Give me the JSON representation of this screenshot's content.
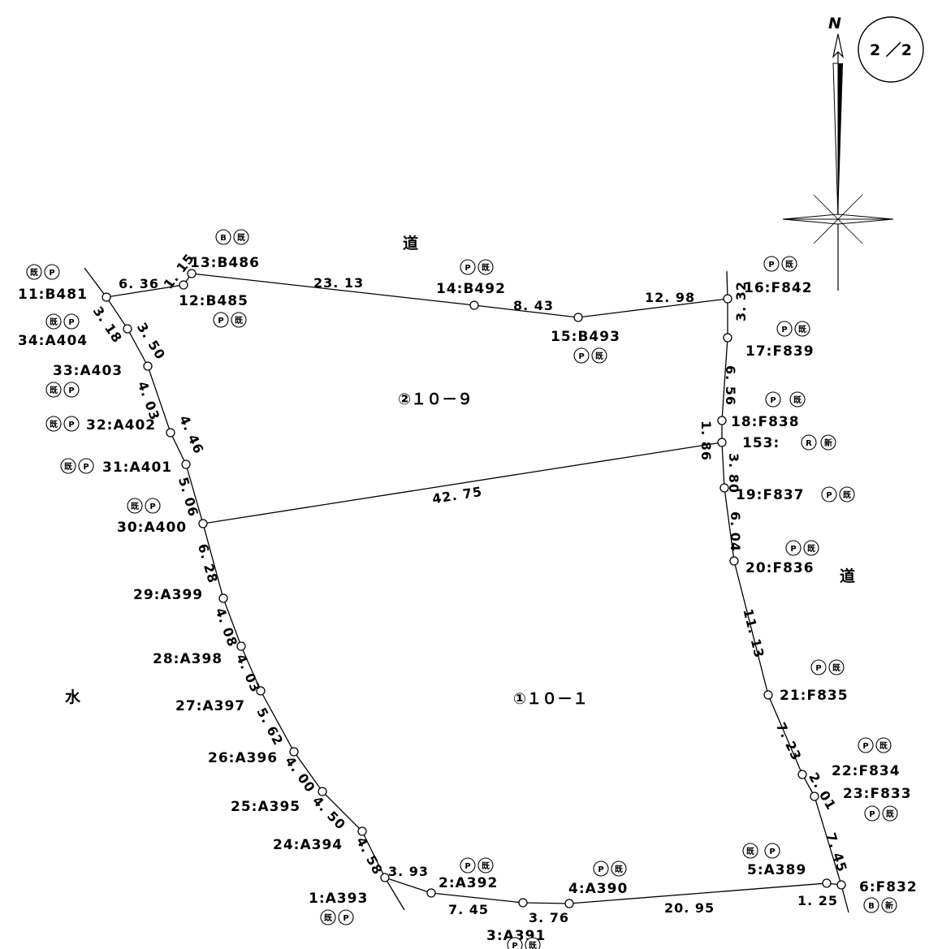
{
  "sheet": {
    "page_label": "2 ／2",
    "north_label": "N"
  },
  "areas": {
    "upper_parcel": "②１０－９",
    "lower_parcel": "①１０－１"
  },
  "labels": {
    "road_top": "道",
    "road_right": "道",
    "water_left": "水"
  },
  "points": {
    "p11": "11:B481",
    "p12": "12:B485",
    "p13": "13:B486",
    "p14": "14:B492",
    "p15": "15:B493",
    "p16": "16:F842",
    "p17": "17:F839",
    "p18": "18:F838",
    "p153": "153:",
    "p19": "19:F837",
    "p20": "20:F836",
    "p21": "21:F835",
    "p22": "22:F834",
    "p23": "23:F833",
    "p6": "6:F832",
    "p5": "5:A389",
    "p4": "4:A390",
    "p3": "3:A391",
    "p2": "2:A392",
    "p1": "1:A393",
    "p24": "24:A394",
    "p25": "25:A395",
    "p26": "26:A396",
    "p27": "27:A397",
    "p28": "28:A398",
    "p29": "29:A399",
    "p30": "30:A400",
    "p31": "31:A401",
    "p32": "32:A402",
    "p33": "33:A403",
    "p34": "34:A404"
  },
  "distances": {
    "d11_12": "6. 36",
    "d12_13": "1. 15",
    "d13_14": "23. 13",
    "d14_15": "8. 43",
    "d15_16": "12. 98",
    "d16_17": "3. 32",
    "d17_18": "6. 56",
    "d18_153": "1. 86",
    "d153_19": "3. 80",
    "d19_20": "6. 04",
    "d20_21": "11. 13",
    "d21_22": "7. 23",
    "d22_23": "2. 01",
    "d23_6": "7. 45",
    "d6_5": "1. 25",
    "d5_4": "20. 95",
    "d4_3": "3. 76",
    "d3_2": "7. 45",
    "d2_1": "3. 93",
    "d1_24": "4. 58",
    "d24_25": "4. 50",
    "d25_26": "4. 00",
    "d26_27": "5. 62",
    "d27_28": "4. 03",
    "d28_29": "4. 08",
    "d29_30": "6. 28",
    "d30_31": "5. 06",
    "d31_32": "4. 46",
    "d32_33": "4. 03",
    "d33_34": "3. 50",
    "d34_11": "3. 18",
    "d30_153": "42. 75"
  },
  "marks": {
    "existing": "既",
    "plate": "P",
    "block": "B",
    "new": "新",
    "rivet": "R"
  }
}
